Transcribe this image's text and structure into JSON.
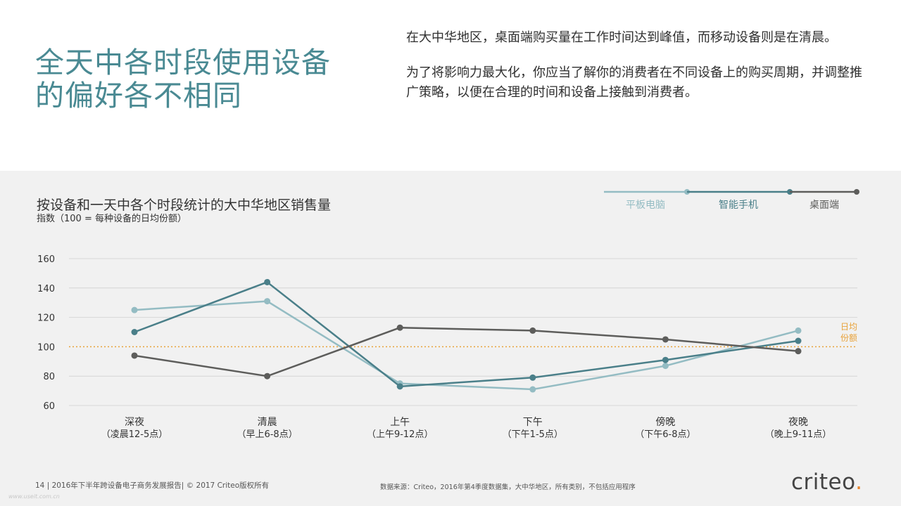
{
  "title": "全天中各时段使用设备\n的偏好各不相同",
  "intro": {
    "p1": "在大中华地区，桌面端购买量在工作时间达到峰值，而移动设备则是在清晨。",
    "p2": "为了将影响力最大化，你应当了解你的消费者在不同设备上的购买周期，并调整推广策略，以便在合理的时间和设备上接触到消费者。"
  },
  "colors": {
    "title": "#4a8a93",
    "tablet": "#94bcc3",
    "smartphone": "#4a7f89",
    "desktop": "#5d5d5b",
    "reference": "#e8a23a",
    "panel": "#f1f1f1"
  },
  "chart_data": {
    "type": "line",
    "title": "按设备和一天中各个时段统计的大中华地区销售量",
    "subtitle": "指数（100 = 每种设备的日均份额）",
    "categories": [
      "深夜",
      "清晨",
      "上午",
      "下午",
      "傍晚",
      "夜晚"
    ],
    "category_sublabels": [
      "（凌晨12-5点）",
      "（早上6-8点）",
      "（上午9-12点）",
      "（下午1-5点）",
      "（下午6-8点）",
      "（晚上9-11点）"
    ],
    "series": [
      {
        "name": "平板电脑",
        "color": "#94bcc3",
        "values": [
          125,
          131,
          75,
          71,
          87,
          111
        ]
      },
      {
        "name": "智能手机",
        "color": "#4a7f89",
        "values": [
          110,
          144,
          73,
          79,
          91,
          104
        ]
      },
      {
        "name": "桌面端",
        "color": "#5d5d5b",
        "values": [
          94,
          80,
          113,
          111,
          105,
          97
        ]
      }
    ],
    "ylim": [
      60,
      160
    ],
    "yticks": [
      "60",
      "80",
      "100",
      "120",
      "140",
      "160"
    ],
    "grid": true,
    "legend_position": "top-right",
    "reference_line": {
      "value": 100,
      "label_line1": "日均",
      "label_line2": "份额"
    }
  },
  "footer": {
    "left": "14 | 2016年下半年跨设备电子商务发展报告| © 2017 Criteo版权所有",
    "source": "数据来源：Criteo，2016年第4季度数据集，大中华地区，所有类别，不包括应用程序",
    "watermark": "www.useit.com.cn"
  },
  "logo": {
    "text": "criteo",
    "dot": "."
  }
}
